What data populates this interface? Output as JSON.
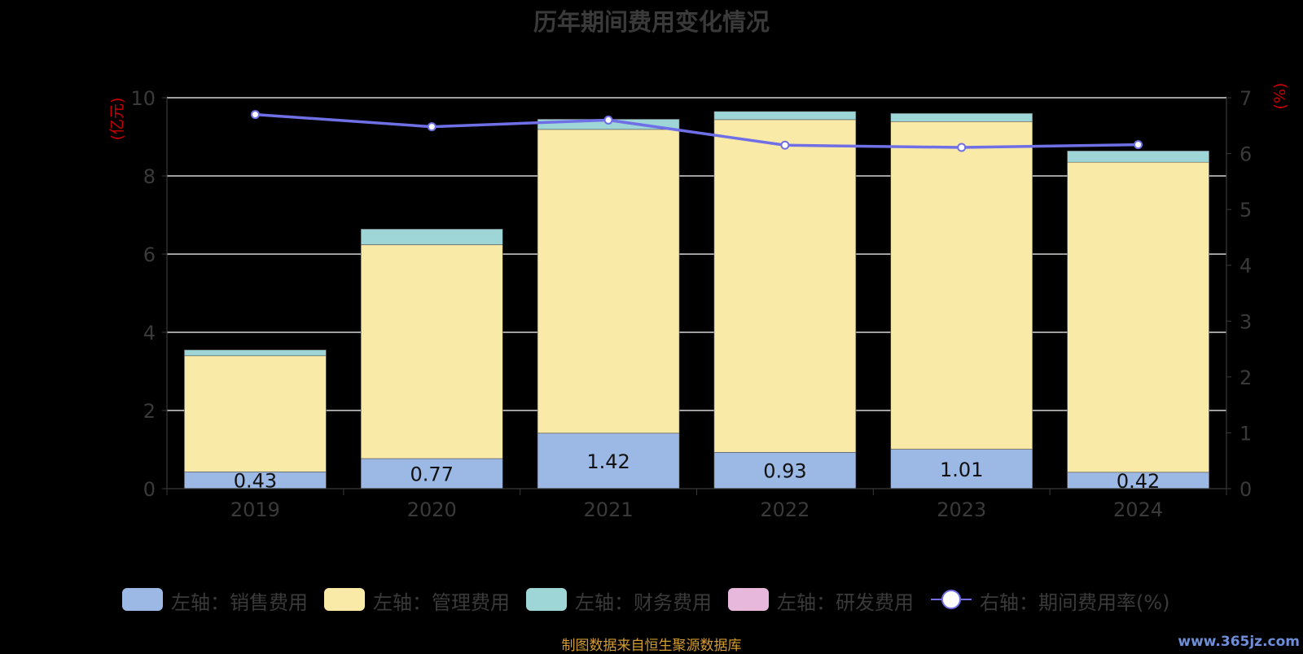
{
  "chart_data": {
    "type": "bar",
    "title": "历年期间费用变化情况",
    "categories": [
      "2019",
      "2020",
      "2021",
      "2022",
      "2023",
      "2024"
    ],
    "left_axis": {
      "label": "(亿元)",
      "ylim": [
        0,
        10
      ],
      "ticks": [
        "0",
        "2",
        "4",
        "6",
        "8",
        "10"
      ]
    },
    "right_axis": {
      "label": "(%)",
      "ylim": [
        0,
        7
      ],
      "ticks": [
        "0",
        "1",
        "2",
        "3",
        "4",
        "5",
        "6",
        "7"
      ]
    },
    "grid": true,
    "legend_position": "bottom",
    "series": [
      {
        "name": "左轴：销售费用",
        "kind": "bar",
        "axis": "left",
        "color": "#9cb8e4",
        "values": [
          0.43,
          0.77,
          1.42,
          0.93,
          1.01,
          0.42
        ],
        "labels": [
          "0.43",
          "0.77",
          "1.42",
          "0.93",
          "1.01",
          "0.42"
        ]
      },
      {
        "name": "左轴：管理费用",
        "kind": "bar",
        "axis": "left",
        "color": "#faeaa8",
        "values": [
          2.97,
          5.47,
          7.77,
          8.51,
          8.38,
          7.93
        ]
      },
      {
        "name": "左轴：财务费用",
        "kind": "bar",
        "axis": "left",
        "color": "#9ed6d8",
        "values": [
          0.15,
          0.4,
          0.26,
          0.21,
          0.21,
          0.29
        ]
      },
      {
        "name": "左轴：研发费用",
        "kind": "bar",
        "axis": "left",
        "color": "#e8b8dc",
        "values": [
          0,
          0,
          0,
          0,
          0,
          0
        ]
      },
      {
        "name": "右轴：期间费用率(%)",
        "kind": "line",
        "axis": "right",
        "color": "#6f6fe6",
        "values": [
          6.7,
          6.48,
          6.6,
          6.15,
          6.11,
          6.16
        ]
      }
    ]
  },
  "footer": {
    "source": "制图数据来自恒生聚源数据库",
    "watermark": "www.365jz.com"
  }
}
